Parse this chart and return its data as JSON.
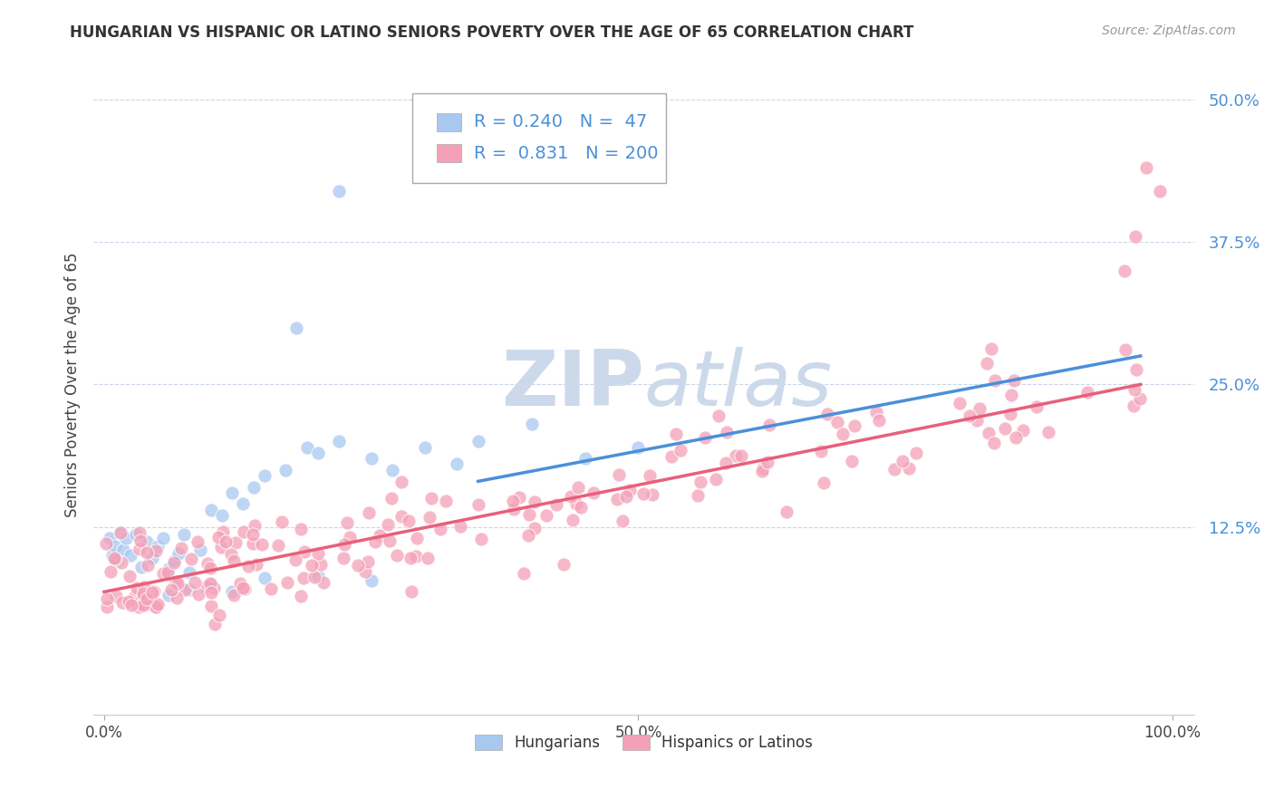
{
  "title": "HUNGARIAN VS HISPANIC OR LATINO SENIORS POVERTY OVER THE AGE OF 65 CORRELATION CHART",
  "source_text": "Source: ZipAtlas.com",
  "ylabel": "Seniors Poverty Over the Age of 65",
  "legend_label1": "Hungarians",
  "legend_label2": "Hispanics or Latinos",
  "R1": 0.24,
  "N1": 47,
  "R2": 0.831,
  "N2": 200,
  "xlim": [
    -0.01,
    1.02
  ],
  "ylim": [
    -0.04,
    0.54
  ],
  "xtick_positions": [
    0.0,
    0.5,
    1.0
  ],
  "xtick_labels": [
    "0.0%",
    "50.0%",
    "100.0%"
  ],
  "ytick_positions": [
    0.125,
    0.25,
    0.375,
    0.5
  ],
  "ytick_labels": [
    "12.5%",
    "25.0%",
    "37.5%",
    "50.0%"
  ],
  "color_blue": "#a8c8f0",
  "color_pink": "#f4a0b8",
  "color_blue_line": "#4a90d9",
  "color_pink_line": "#e8607a",
  "watermark_color": "#ccd9ea",
  "background_color": "#ffffff",
  "grid_color": "#c8d4e8",
  "title_color": "#333333",
  "source_color": "#999999",
  "ytick_color": "#4a90d9",
  "legend_text_color": "#4a90d9",
  "blue_line_start_x": 0.35,
  "blue_line_end_x": 0.97,
  "blue_line_start_y": 0.165,
  "blue_line_end_y": 0.275,
  "pink_line_start_x": 0.0,
  "pink_line_end_x": 0.97,
  "pink_line_start_y": 0.068,
  "pink_line_end_y": 0.25
}
